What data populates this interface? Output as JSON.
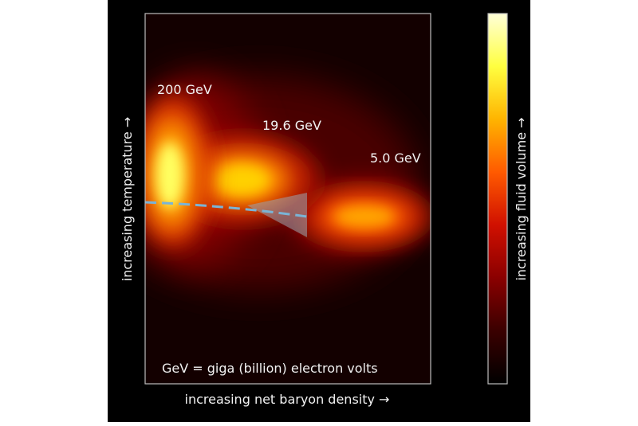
{
  "chart_data": {
    "type": "heatmap",
    "title": "",
    "xlabel": "increasing net baryon density →",
    "ylabel": "increasing temperature →",
    "colorbar_label": "increasing fluid volume →",
    "colormap": [
      "#000000",
      "#3a0000",
      "#8a0000",
      "#d01000",
      "#ff5a00",
      "#ffb400",
      "#ffff40",
      "#ffffd8"
    ],
    "footnote": "GeV = giga (billion) electron volts",
    "series": [
      {
        "name": "200 GeV",
        "color_at_peak": "#ffff60"
      },
      {
        "name": "19.6 GeV",
        "color_at_peak": "#ffd000"
      },
      {
        "name": "5.0 GeV",
        "color_at_peak": "#ff9a00"
      }
    ]
  },
  "colors": {
    "background": "#000000",
    "frame_stroke": "#bdbdbd",
    "text": "#f2f2f2",
    "dashed_line": "#7ab4d6",
    "wedge": "#9aa6b0"
  }
}
